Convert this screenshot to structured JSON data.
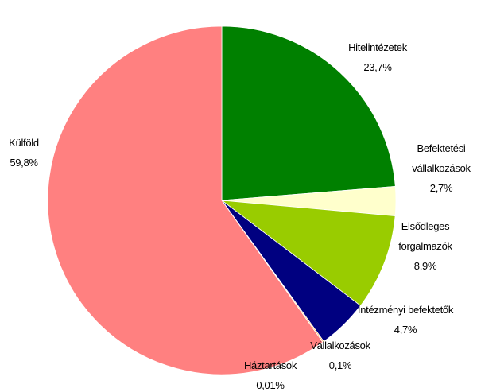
{
  "chart_data": {
    "type": "pie",
    "categories": [
      "Hitelintézetek",
      "Befektetési vállalkozások",
      "Elsődleges forgalmazók",
      "Intézményi befektetők",
      "Vállalkozások",
      "Háztartások",
      "Külföld"
    ],
    "values": [
      23.7,
      2.7,
      8.9,
      4.7,
      0.1,
      0.01,
      59.8
    ],
    "value_labels": [
      "23,7%",
      "2,7%",
      "8,9%",
      "4,7%",
      "0,1%",
      "0,01%",
      "59,8%"
    ],
    "colors": [
      "#008000",
      "#ffffcc",
      "#99cc00",
      "#000080",
      "#ff9900",
      "#ffff00",
      "#ff8080"
    ]
  }
}
